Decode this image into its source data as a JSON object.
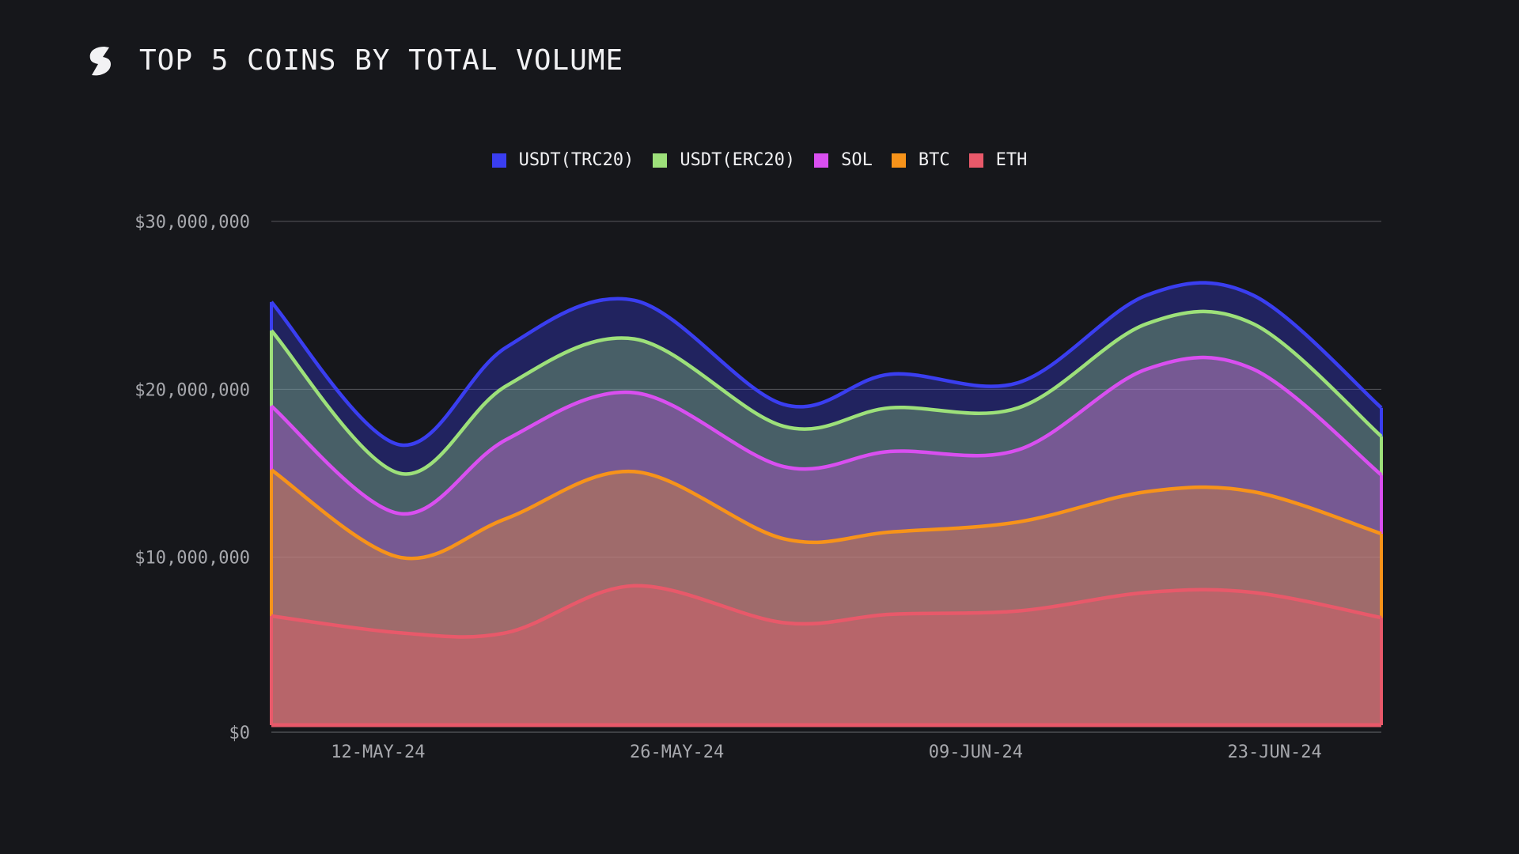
{
  "header": {
    "title": "TOP 5 COINS BY TOTAL VOLUME",
    "logo_icon": "stripe-s-logo-icon"
  },
  "colors": {
    "background": "#16171b",
    "grid": "#8a8b90"
  },
  "chart_data": {
    "type": "area",
    "stacked": true,
    "title": "TOP 5 COINS BY TOTAL VOLUME",
    "xlabel": "",
    "ylabel": "",
    "ylim": [
      0,
      30000000
    ],
    "y_ticks": [
      {
        "value": 0,
        "label": "$0"
      },
      {
        "value": 10000000,
        "label": "$10,000,000"
      },
      {
        "value": 20000000,
        "label": "$20,000,000"
      },
      {
        "value": 30000000,
        "label": "$30,000,000"
      }
    ],
    "x": [
      "2024-05-07",
      "2024-05-13",
      "2024-05-18",
      "2024-05-24",
      "2024-05-31",
      "2024-06-05",
      "2024-06-11",
      "2024-06-17",
      "2024-06-22",
      "2024-06-28"
    ],
    "x_ticks": [
      {
        "value": "2024-05-12",
        "label": "12-MAY-24"
      },
      {
        "value": "2024-05-26",
        "label": "26-MAY-24"
      },
      {
        "value": "2024-06-09",
        "label": "09-JUN-24"
      },
      {
        "value": "2024-06-23",
        "label": "23-JUN-24"
      }
    ],
    "grid": true,
    "legend_position": "top-center",
    "series": [
      {
        "name": "ETH",
        "color": "#e8596a",
        "values": [
          6.5,
          5.5,
          5.5,
          8.3,
          6.1,
          6.6,
          6.8,
          7.9,
          7.9,
          6.4
        ]
      },
      {
        "name": "BTC",
        "color": "#f7931a",
        "values": [
          8.7,
          4.5,
          6.8,
          6.8,
          5.0,
          4.9,
          5.3,
          6.0,
          6.0,
          5.0
        ]
      },
      {
        "name": "SOL",
        "color": "#d94ff0",
        "values": [
          3.8,
          2.6,
          4.7,
          4.7,
          4.3,
          4.8,
          4.3,
          7.3,
          7.3,
          3.5
        ]
      },
      {
        "name": "USDT(ERC20)",
        "color": "#9de07a",
        "values": [
          4.5,
          2.4,
          3.2,
          3.2,
          2.4,
          2.6,
          2.5,
          2.7,
          2.7,
          2.3
        ]
      },
      {
        "name": "USDT(TRC20)",
        "color": "#3a3ef0",
        "values": [
          1.7,
          1.7,
          2.3,
          2.3,
          1.3,
          2.0,
          1.5,
          1.7,
          1.7,
          1.7
        ]
      }
    ],
    "units": "USD millions (stacked)"
  },
  "legend": [
    {
      "label": "USDT(TRC20)",
      "color": "#3a3ef0"
    },
    {
      "label": "USDT(ERC20)",
      "color": "#9de07a"
    },
    {
      "label": "SOL",
      "color": "#d94ff0"
    },
    {
      "label": "BTC",
      "color": "#f7931a"
    },
    {
      "label": "ETH",
      "color": "#e8596a"
    }
  ]
}
